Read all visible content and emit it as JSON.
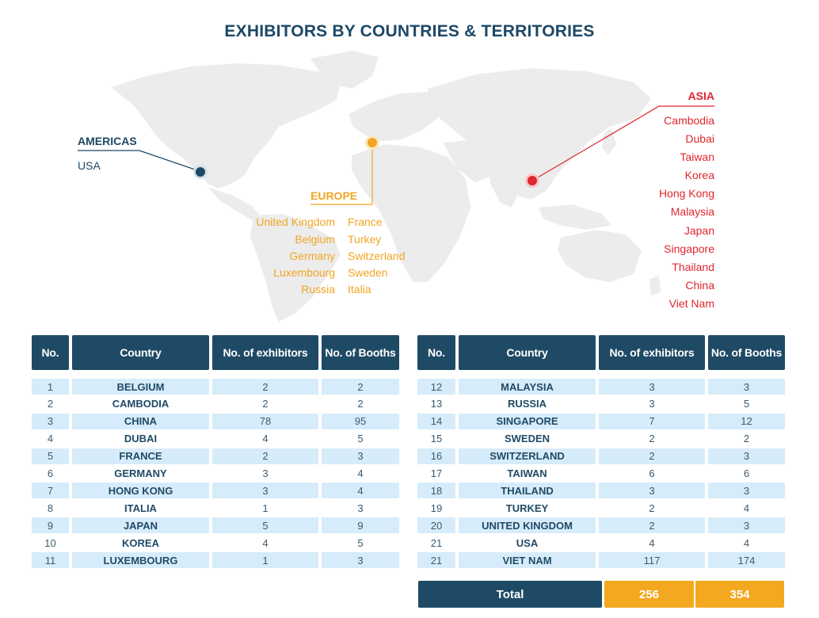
{
  "title": "EXHIBITORS BY COUNTRIES & TERRITORIES",
  "colors": {
    "americas": "#1d4866",
    "europe": "#f2a522",
    "asia": "#e0262f",
    "header_bg": "#1f4a65",
    "row_stripe": "#d7ecfa",
    "total_accent": "#f4a820"
  },
  "map": {
    "americas": {
      "heading": "AMERICAS",
      "items": [
        "USA"
      ]
    },
    "europe": {
      "heading": "EUROPE",
      "left_col": [
        "United Kingdom",
        "Belgium",
        "Germany",
        "Luxembourg",
        "Russia"
      ],
      "right_col": [
        "France",
        "Turkey",
        "Switzerland",
        "Sweden",
        "Italia"
      ]
    },
    "asia": {
      "heading": "ASIA",
      "items": [
        "Cambodia",
        "Dubai",
        "Taiwan",
        "Korea",
        "Hong Kong",
        "Malaysia",
        "Japan",
        "Singapore",
        "Thailand",
        "China",
        "Viet Nam"
      ]
    }
  },
  "table_headers": [
    "No.",
    "Country",
    "No. of exhibitors",
    "No. of Booths"
  ],
  "table_left": [
    {
      "no": "1",
      "country": "BELGIUM",
      "exhibitors": "2",
      "booths": "2"
    },
    {
      "no": "2",
      "country": "CAMBODIA",
      "exhibitors": "2",
      "booths": "2"
    },
    {
      "no": "3",
      "country": "CHINA",
      "exhibitors": "78",
      "booths": "95"
    },
    {
      "no": "4",
      "country": "DUBAI",
      "exhibitors": "4",
      "booths": "5"
    },
    {
      "no": "5",
      "country": "FRANCE",
      "exhibitors": "2",
      "booths": "3"
    },
    {
      "no": "6",
      "country": "GERMANY",
      "exhibitors": "3",
      "booths": "4"
    },
    {
      "no": "7",
      "country": "HONG KONG",
      "exhibitors": "3",
      "booths": "4"
    },
    {
      "no": "8",
      "country": "ITALIA",
      "exhibitors": "1",
      "booths": "3"
    },
    {
      "no": "9",
      "country": "JAPAN",
      "exhibitors": "5",
      "booths": "9"
    },
    {
      "no": "10",
      "country": "KOREA",
      "exhibitors": "4",
      "booths": "5"
    },
    {
      "no": "11",
      "country": "LUXEMBOURG",
      "exhibitors": "1",
      "booths": "3"
    }
  ],
  "table_right": [
    {
      "no": "12",
      "country": "MALAYSIA",
      "exhibitors": "3",
      "booths": "3"
    },
    {
      "no": "13",
      "country": "RUSSIA",
      "exhibitors": "3",
      "booths": "5"
    },
    {
      "no": "14",
      "country": "SINGAPORE",
      "exhibitors": "7",
      "booths": "12"
    },
    {
      "no": "15",
      "country": "SWEDEN",
      "exhibitors": "2",
      "booths": "2"
    },
    {
      "no": "16",
      "country": "SWITZERLAND",
      "exhibitors": "2",
      "booths": "3"
    },
    {
      "no": "17",
      "country": "TAIWAN",
      "exhibitors": "6",
      "booths": "6"
    },
    {
      "no": "18",
      "country": "THAILAND",
      "exhibitors": "3",
      "booths": "3"
    },
    {
      "no": "19",
      "country": "TURKEY",
      "exhibitors": "2",
      "booths": "4"
    },
    {
      "no": "20",
      "country": "UNITED KINGDOM",
      "exhibitors": "2",
      "booths": "3"
    },
    {
      "no": "21",
      "country": "USA",
      "exhibitors": "4",
      "booths": "4"
    },
    {
      "no": "21",
      "country": "VIET NAM",
      "exhibitors": "117",
      "booths": "174"
    }
  ],
  "total": {
    "label": "Total",
    "exhibitors": "256",
    "booths": "354"
  }
}
